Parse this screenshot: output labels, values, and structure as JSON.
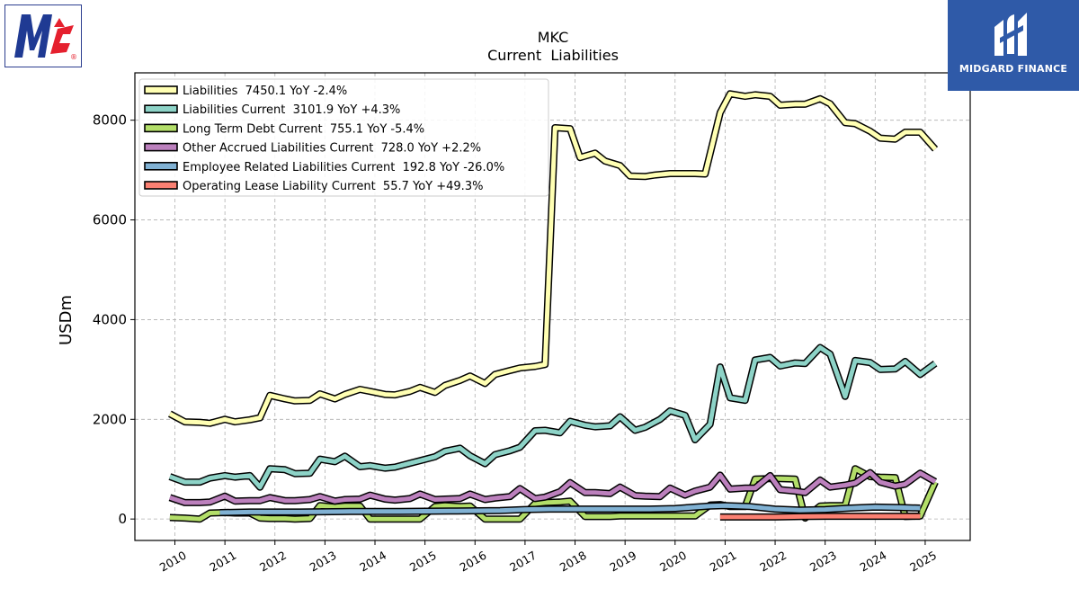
{
  "logos": {
    "left": {
      "name": "McCormick",
      "letters": "Mc",
      "mark": "®"
    },
    "right": {
      "text": "MIDGARD FINANCE"
    }
  },
  "chart_data": {
    "type": "line",
    "title": "MKC",
    "subtitle": "Current  Liabilities",
    "xlabel": "",
    "ylabel": "USDm",
    "xlim": [
      2009.2,
      2025.9
    ],
    "ylim": [
      -430,
      8950
    ],
    "yticks": [
      0,
      2000,
      4000,
      6000,
      8000
    ],
    "xticks": [
      "2010",
      "2011",
      "2012",
      "2013",
      "2014",
      "2015",
      "2016",
      "2017",
      "2018",
      "2019",
      "2020",
      "2021",
      "2022",
      "2023",
      "2024",
      "2025"
    ],
    "grid": true,
    "legend_position": "top-left",
    "series": [
      {
        "name": "Liabilities  7450.1 YoY -2.4%",
        "color": "#ffffb3",
        "points": [
          [
            2009.9,
            2110
          ],
          [
            2010.2,
            1950
          ],
          [
            2010.5,
            1940
          ],
          [
            2010.7,
            1920
          ],
          [
            2011.0,
            2000
          ],
          [
            2011.2,
            1950
          ],
          [
            2011.5,
            1990
          ],
          [
            2011.7,
            2030
          ],
          [
            2011.9,
            2480
          ],
          [
            2012.2,
            2410
          ],
          [
            2012.4,
            2370
          ],
          [
            2012.7,
            2380
          ],
          [
            2012.9,
            2510
          ],
          [
            2013.2,
            2410
          ],
          [
            2013.4,
            2500
          ],
          [
            2013.7,
            2600
          ],
          [
            2013.9,
            2560
          ],
          [
            2014.2,
            2500
          ],
          [
            2014.4,
            2490
          ],
          [
            2014.7,
            2560
          ],
          [
            2014.9,
            2640
          ],
          [
            2015.2,
            2540
          ],
          [
            2015.4,
            2680
          ],
          [
            2015.7,
            2780
          ],
          [
            2015.9,
            2870
          ],
          [
            2016.2,
            2720
          ],
          [
            2016.4,
            2900
          ],
          [
            2016.7,
            2980
          ],
          [
            2016.9,
            3030
          ],
          [
            2017.2,
            3060
          ],
          [
            2017.4,
            3100
          ],
          [
            2017.6,
            7850
          ],
          [
            2017.9,
            7830
          ],
          [
            2018.1,
            7250
          ],
          [
            2018.4,
            7340
          ],
          [
            2018.6,
            7180
          ],
          [
            2018.9,
            7090
          ],
          [
            2019.1,
            6880
          ],
          [
            2019.4,
            6870
          ],
          [
            2019.6,
            6900
          ],
          [
            2019.9,
            6930
          ],
          [
            2020.1,
            6930
          ],
          [
            2020.4,
            6930
          ],
          [
            2020.6,
            6920
          ],
          [
            2020.9,
            8150
          ],
          [
            2021.1,
            8530
          ],
          [
            2021.4,
            8480
          ],
          [
            2021.6,
            8510
          ],
          [
            2021.9,
            8480
          ],
          [
            2022.1,
            8300
          ],
          [
            2022.4,
            8320
          ],
          [
            2022.6,
            8320
          ],
          [
            2022.9,
            8430
          ],
          [
            2023.1,
            8330
          ],
          [
            2023.4,
            7950
          ],
          [
            2023.6,
            7930
          ],
          [
            2023.9,
            7780
          ],
          [
            2024.1,
            7640
          ],
          [
            2024.4,
            7620
          ],
          [
            2024.6,
            7760
          ],
          [
            2024.9,
            7760
          ],
          [
            2025.2,
            7420
          ]
        ]
      },
      {
        "name": "Liabilities Current  3101.9 YoY +4.3%",
        "color": "#8dd3c7",
        "points": [
          [
            2009.9,
            850
          ],
          [
            2010.2,
            740
          ],
          [
            2010.5,
            740
          ],
          [
            2010.7,
            820
          ],
          [
            2011.0,
            870
          ],
          [
            2011.2,
            840
          ],
          [
            2011.5,
            870
          ],
          [
            2011.7,
            640
          ],
          [
            2011.9,
            1010
          ],
          [
            2012.2,
            990
          ],
          [
            2012.4,
            910
          ],
          [
            2012.7,
            920
          ],
          [
            2012.9,
            1200
          ],
          [
            2013.2,
            1150
          ],
          [
            2013.4,
            1260
          ],
          [
            2013.7,
            1050
          ],
          [
            2013.9,
            1070
          ],
          [
            2014.2,
            1020
          ],
          [
            2014.4,
            1040
          ],
          [
            2014.7,
            1120
          ],
          [
            2014.9,
            1170
          ],
          [
            2015.2,
            1250
          ],
          [
            2015.4,
            1360
          ],
          [
            2015.7,
            1420
          ],
          [
            2015.9,
            1270
          ],
          [
            2016.2,
            1110
          ],
          [
            2016.4,
            1290
          ],
          [
            2016.7,
            1370
          ],
          [
            2016.9,
            1440
          ],
          [
            2017.2,
            1770
          ],
          [
            2017.4,
            1780
          ],
          [
            2017.7,
            1730
          ],
          [
            2017.9,
            1960
          ],
          [
            2018.2,
            1880
          ],
          [
            2018.4,
            1850
          ],
          [
            2018.7,
            1870
          ],
          [
            2018.9,
            2050
          ],
          [
            2019.2,
            1780
          ],
          [
            2019.4,
            1840
          ],
          [
            2019.7,
            2000
          ],
          [
            2019.9,
            2170
          ],
          [
            2020.2,
            2080
          ],
          [
            2020.4,
            1590
          ],
          [
            2020.7,
            1900
          ],
          [
            2020.9,
            3050
          ],
          [
            2021.1,
            2430
          ],
          [
            2021.4,
            2380
          ],
          [
            2021.6,
            3190
          ],
          [
            2021.9,
            3240
          ],
          [
            2022.1,
            3070
          ],
          [
            2022.4,
            3130
          ],
          [
            2022.6,
            3120
          ],
          [
            2022.9,
            3440
          ],
          [
            2023.1,
            3310
          ],
          [
            2023.4,
            2460
          ],
          [
            2023.6,
            3180
          ],
          [
            2023.9,
            3140
          ],
          [
            2024.1,
            3000
          ],
          [
            2024.4,
            3010
          ],
          [
            2024.6,
            3160
          ],
          [
            2024.9,
            2900
          ],
          [
            2025.2,
            3120
          ]
        ]
      },
      {
        "name": "Long Term Debt Current  755.1 YoY -5.4%",
        "color": "#b3de69",
        "points": [
          [
            2009.9,
            30
          ],
          [
            2010.2,
            20
          ],
          [
            2010.5,
            0
          ],
          [
            2010.7,
            120
          ],
          [
            2011.0,
            130
          ],
          [
            2011.2,
            120
          ],
          [
            2011.5,
            120
          ],
          [
            2011.7,
            20
          ],
          [
            2011.9,
            10
          ],
          [
            2012.2,
            10
          ],
          [
            2012.4,
            0
          ],
          [
            2012.7,
            10
          ],
          [
            2012.9,
            270
          ],
          [
            2013.2,
            240
          ],
          [
            2013.4,
            260
          ],
          [
            2013.7,
            260
          ],
          [
            2013.9,
            0
          ],
          [
            2014.2,
            0
          ],
          [
            2014.4,
            0
          ],
          [
            2014.7,
            0
          ],
          [
            2014.9,
            0
          ],
          [
            2015.2,
            250
          ],
          [
            2015.4,
            270
          ],
          [
            2015.7,
            250
          ],
          [
            2015.9,
            260
          ],
          [
            2016.2,
            0
          ],
          [
            2016.4,
            0
          ],
          [
            2016.7,
            0
          ],
          [
            2016.9,
            0
          ],
          [
            2017.2,
            310
          ],
          [
            2017.4,
            330
          ],
          [
            2017.7,
            340
          ],
          [
            2017.9,
            360
          ],
          [
            2018.2,
            50
          ],
          [
            2018.4,
            50
          ],
          [
            2018.7,
            50
          ],
          [
            2018.9,
            60
          ],
          [
            2019.2,
            60
          ],
          [
            2019.4,
            60
          ],
          [
            2019.7,
            60
          ],
          [
            2019.9,
            60
          ],
          [
            2020.2,
            60
          ],
          [
            2020.4,
            60
          ],
          [
            2020.7,
            280
          ],
          [
            2020.9,
            290
          ],
          [
            2021.1,
            250
          ],
          [
            2021.4,
            250
          ],
          [
            2021.6,
            800
          ],
          [
            2021.9,
            810
          ],
          [
            2022.1,
            810
          ],
          [
            2022.4,
            800
          ],
          [
            2022.6,
            20
          ],
          [
            2022.9,
            260
          ],
          [
            2023.1,
            270
          ],
          [
            2023.4,
            270
          ],
          [
            2023.6,
            1010
          ],
          [
            2023.9,
            850
          ],
          [
            2024.1,
            840
          ],
          [
            2024.4,
            830
          ],
          [
            2024.6,
            50
          ],
          [
            2024.9,
            60
          ],
          [
            2025.2,
            740
          ]
        ]
      },
      {
        "name": "Other Accrued Liabilities Current  728.0 YoY +2.2%",
        "color": "#bc80bd",
        "points": [
          [
            2009.9,
            430
          ],
          [
            2010.2,
            330
          ],
          [
            2010.5,
            330
          ],
          [
            2010.7,
            340
          ],
          [
            2011.0,
            460
          ],
          [
            2011.2,
            360
          ],
          [
            2011.5,
            370
          ],
          [
            2011.7,
            370
          ],
          [
            2011.9,
            430
          ],
          [
            2012.2,
            370
          ],
          [
            2012.4,
            370
          ],
          [
            2012.7,
            390
          ],
          [
            2012.9,
            450
          ],
          [
            2013.2,
            360
          ],
          [
            2013.4,
            390
          ],
          [
            2013.7,
            400
          ],
          [
            2013.9,
            480
          ],
          [
            2014.2,
            400
          ],
          [
            2014.4,
            380
          ],
          [
            2014.7,
            410
          ],
          [
            2014.9,
            500
          ],
          [
            2015.2,
            390
          ],
          [
            2015.4,
            400
          ],
          [
            2015.7,
            410
          ],
          [
            2015.9,
            500
          ],
          [
            2016.2,
            390
          ],
          [
            2016.4,
            420
          ],
          [
            2016.7,
            450
          ],
          [
            2016.9,
            610
          ],
          [
            2017.2,
            410
          ],
          [
            2017.4,
            440
          ],
          [
            2017.7,
            550
          ],
          [
            2017.9,
            730
          ],
          [
            2018.2,
            530
          ],
          [
            2018.4,
            530
          ],
          [
            2018.7,
            510
          ],
          [
            2018.9,
            640
          ],
          [
            2019.2,
            470
          ],
          [
            2019.4,
            460
          ],
          [
            2019.7,
            450
          ],
          [
            2019.9,
            620
          ],
          [
            2020.2,
            480
          ],
          [
            2020.4,
            560
          ],
          [
            2020.7,
            640
          ],
          [
            2020.9,
            880
          ],
          [
            2021.1,
            600
          ],
          [
            2021.4,
            620
          ],
          [
            2021.6,
            620
          ],
          [
            2021.9,
            870
          ],
          [
            2022.1,
            590
          ],
          [
            2022.4,
            560
          ],
          [
            2022.6,
            530
          ],
          [
            2022.9,
            780
          ],
          [
            2023.1,
            640
          ],
          [
            2023.4,
            680
          ],
          [
            2023.6,
            720
          ],
          [
            2023.9,
            930
          ],
          [
            2024.1,
            740
          ],
          [
            2024.4,
            660
          ],
          [
            2024.6,
            700
          ],
          [
            2024.9,
            920
          ],
          [
            2025.2,
            750
          ]
        ]
      },
      {
        "name": "Employee Related Liabilities Current  192.8 YoY -26.0%",
        "color": "#80b1d3",
        "points": [
          [
            2010.9,
            130
          ],
          [
            2011.5,
            140
          ],
          [
            2012.5,
            140
          ],
          [
            2013.5,
            150
          ],
          [
            2014.5,
            150
          ],
          [
            2015.5,
            160
          ],
          [
            2016.5,
            170
          ],
          [
            2017.0,
            190
          ],
          [
            2017.5,
            200
          ],
          [
            2018.5,
            200
          ],
          [
            2019.5,
            200
          ],
          [
            2020.0,
            210
          ],
          [
            2020.7,
            260
          ],
          [
            2021.0,
            270
          ],
          [
            2021.5,
            250
          ],
          [
            2022.0,
            200
          ],
          [
            2022.5,
            180
          ],
          [
            2023.0,
            190
          ],
          [
            2023.5,
            220
          ],
          [
            2024.0,
            240
          ],
          [
            2024.5,
            230
          ],
          [
            2024.9,
            220
          ]
        ]
      },
      {
        "name": "Operating Lease Liability Current  55.7 YoY +49.3%",
        "color": "#fb8072",
        "points": [
          [
            2020.9,
            40
          ],
          [
            2021.5,
            40
          ],
          [
            2022.0,
            40
          ],
          [
            2022.5,
            50
          ],
          [
            2023.0,
            55
          ],
          [
            2023.5,
            55
          ],
          [
            2024.0,
            55
          ],
          [
            2024.9,
            56
          ]
        ]
      }
    ]
  }
}
